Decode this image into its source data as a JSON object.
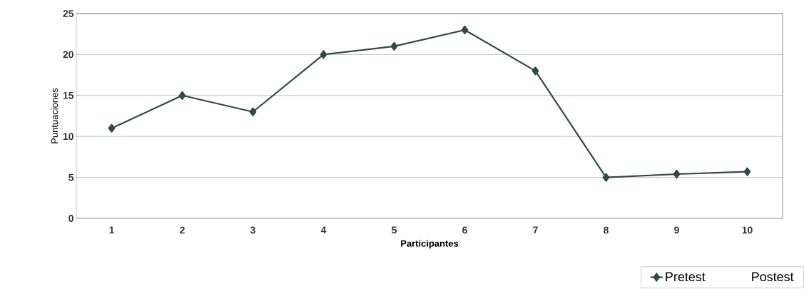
{
  "chart_data": {
    "type": "line",
    "xlabel": "Participantes",
    "ylabel": "Puntuaciones",
    "categories": [
      "1",
      "2",
      "3",
      "4",
      "5",
      "6",
      "7",
      "8",
      "9",
      "10"
    ],
    "series": [
      {
        "name": "Pretest",
        "color": "#2f4a48",
        "values": [
          11,
          15,
          13,
          20,
          21,
          23,
          18,
          5,
          5.4,
          5.7
        ]
      },
      {
        "name": "Postest",
        "values": [
          null,
          null,
          null,
          null,
          null,
          null,
          null,
          null,
          null,
          null
        ]
      }
    ],
    "ylim": [
      0,
      25
    ],
    "yticks": [
      0,
      5,
      10,
      15,
      20,
      25
    ],
    "grid": "y",
    "legend": "bottom right",
    "marker": "diamond",
    "line_style": "solid"
  }
}
